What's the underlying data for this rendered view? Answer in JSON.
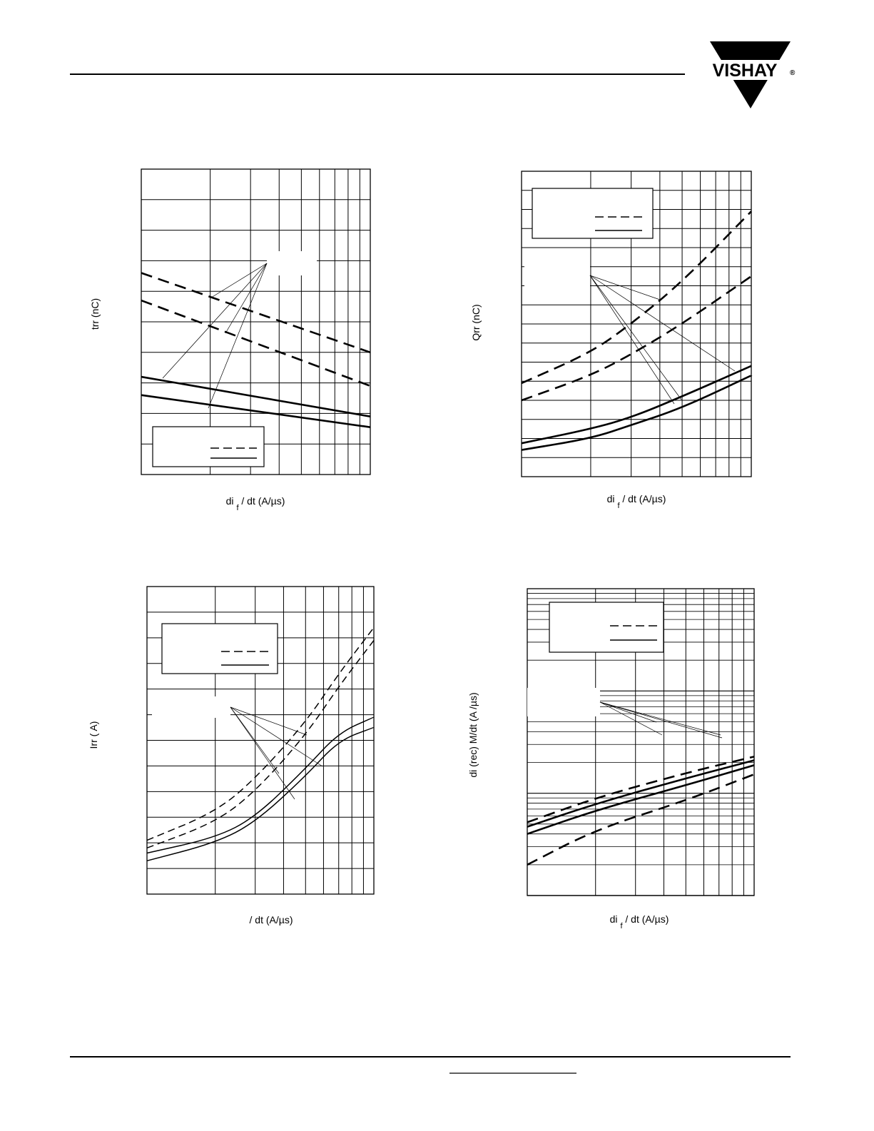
{
  "header": {
    "logo_text": "VISHAY",
    "logo_registered": "®"
  },
  "chart_data": [
    {
      "type": "line",
      "ylabel": "trr (nC)",
      "xlabel_parts": [
        "di",
        "f",
        "/ dt (A/µs)"
      ],
      "x_scale": "log",
      "x_decade": [
        100,
        1000
      ],
      "y_rows": 10,
      "series": [
        {
          "style": "dashed",
          "points": [
            [
              100,
              6.6
            ],
            [
              1000,
              4.0
            ]
          ]
        },
        {
          "style": "dashed",
          "points": [
            [
              100,
              5.7
            ],
            [
              1000,
              2.9
            ]
          ]
        },
        {
          "style": "solid",
          "points": [
            [
              100,
              3.2
            ],
            [
              1000,
              1.9
            ]
          ]
        },
        {
          "style": "solid",
          "points": [
            [
              100,
              2.6
            ],
            [
              1000,
              1.55
            ]
          ]
        }
      ],
      "legend": {
        "placement": "bottom-left",
        "styles": [
          "dashed",
          "solid"
        ]
      }
    },
    {
      "type": "line",
      "ylabel": "Qrr (nC)",
      "xlabel_parts": [
        "di",
        "f",
        "/ dt (A/µs)"
      ],
      "x_scale": "log",
      "x_decade": [
        100,
        1000
      ],
      "y_rows": 16,
      "series": [
        {
          "style": "dashed",
          "points": [
            [
              100,
              4.9
            ],
            [
              200,
              6.5
            ],
            [
              300,
              8.0
            ],
            [
              500,
              10.2
            ],
            [
              1000,
              13.9
            ]
          ]
        },
        {
          "style": "dashed",
          "points": [
            [
              100,
              4.0
            ],
            [
              200,
              5.3
            ],
            [
              300,
              6.4
            ],
            [
              500,
              8.0
            ],
            [
              1000,
              10.5
            ]
          ]
        },
        {
          "style": "solid",
          "points": [
            [
              100,
              1.75
            ],
            [
              200,
              2.5
            ],
            [
              300,
              3.1
            ],
            [
              500,
              4.2
            ],
            [
              1000,
              5.8
            ]
          ]
        },
        {
          "style": "solid",
          "points": [
            [
              100,
              1.4
            ],
            [
              200,
              2.0
            ],
            [
              300,
              2.7
            ],
            [
              500,
              3.6
            ],
            [
              1000,
              5.3
            ]
          ]
        }
      ],
      "legend": {
        "placement": "top-left",
        "styles": [
          "dashed",
          "solid"
        ]
      }
    },
    {
      "type": "line",
      "ylabel": "Irr ( A)",
      "xlabel_parts": [
        "",
        "",
        "/ dt (A/µs)"
      ],
      "x_scale": "log",
      "x_decade": [
        100,
        1000
      ],
      "y_rows": 12,
      "series": [
        {
          "style": "dashed",
          "points": [
            [
              100,
              2.1
            ],
            [
              200,
              3.2
            ],
            [
              300,
              4.5
            ],
            [
              500,
              6.7
            ],
            [
              700,
              8.6
            ],
            [
              1000,
              10.4
            ]
          ]
        },
        {
          "style": "dashed",
          "points": [
            [
              100,
              1.8
            ],
            [
              200,
              2.8
            ],
            [
              300,
              4.0
            ],
            [
              500,
              6.2
            ],
            [
              700,
              8.1
            ],
            [
              1000,
              9.9
            ]
          ]
        },
        {
          "style": "solid",
          "points": [
            [
              100,
              1.6
            ],
            [
              200,
              2.2
            ],
            [
              300,
              3.0
            ],
            [
              500,
              4.9
            ],
            [
              700,
              6.3
            ],
            [
              1000,
              6.9
            ]
          ]
        },
        {
          "style": "solid",
          "points": [
            [
              100,
              1.3
            ],
            [
              200,
              2.0
            ],
            [
              300,
              2.8
            ],
            [
              500,
              4.6
            ],
            [
              700,
              6.0
            ],
            [
              1000,
              6.5
            ]
          ]
        }
      ],
      "legend": {
        "placement": "top-left",
        "styles": [
          "dashed",
          "solid"
        ]
      }
    },
    {
      "type": "line",
      "ylabel": "di (rec) M/dt (A /µs)",
      "xlabel_parts": [
        "di",
        "f",
        "/ dt (A/µs)"
      ],
      "x_scale": "log",
      "x_decade": [
        100,
        1000
      ],
      "y_scale": "log",
      "y_decades": 3,
      "series": [
        {
          "style": "dashed",
          "points": [
            [
              100,
              0.52
            ],
            [
              200,
              0.9
            ],
            [
              500,
              1.58
            ],
            [
              1000,
              2.28
            ]
          ]
        },
        {
          "style": "solid",
          "points": [
            [
              100,
              0.47
            ],
            [
              200,
              0.79
            ],
            [
              500,
              1.4
            ],
            [
              1000,
              2.1
            ]
          ]
        },
        {
          "style": "solid",
          "points": [
            [
              100,
              0.4
            ],
            [
              200,
              0.68
            ],
            [
              500,
              1.2
            ],
            [
              1000,
              1.88
            ]
          ]
        },
        {
          "style": "dashed",
          "points": [
            [
              100,
              0.2
            ],
            [
              200,
              0.44
            ],
            [
              500,
              0.85
            ],
            [
              1000,
              1.53
            ]
          ]
        }
      ],
      "legend": {
        "placement": "top-left",
        "styles": [
          "dashed",
          "solid"
        ]
      }
    }
  ]
}
